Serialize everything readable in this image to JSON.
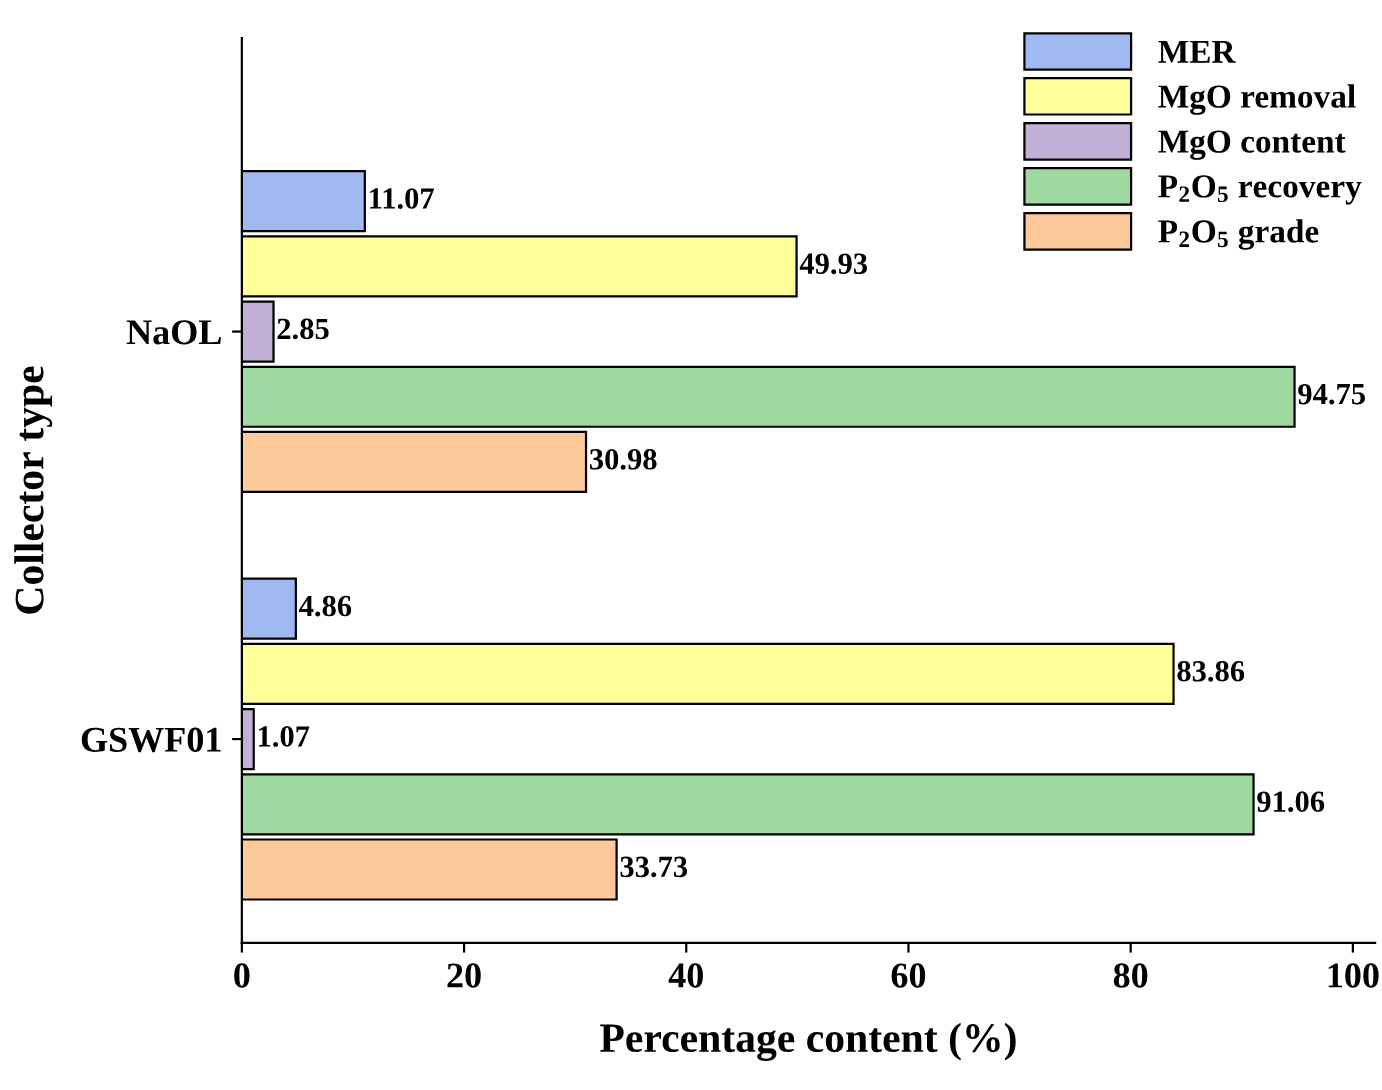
{
  "chart_data": {
    "type": "bar",
    "orientation": "horizontal",
    "xlabel": "Percentage content (%)",
    "ylabel": "Collector type",
    "categories": [
      "NaOL",
      "GSWF01"
    ],
    "series": [
      {
        "name": "MER",
        "color": "#a0b9f0",
        "values": [
          11.07,
          4.86
        ]
      },
      {
        "name": "MgO removal",
        "color": "#ffff99",
        "values": [
          49.93,
          83.86
        ]
      },
      {
        "name": "MgO content",
        "color": "#c2b0d6",
        "values": [
          2.85,
          1.07
        ]
      },
      {
        "name": "P$_{2}$O$_{5}$ recovery",
        "color": "#a0d9a0",
        "values": [
          94.75,
          91.06
        ]
      },
      {
        "name": "P$_{2}$O$_{5}$ grade",
        "color": "#fcc99a",
        "values": [
          30.98,
          33.73
        ]
      }
    ],
    "xlim": [
      0,
      102
    ],
    "xticks": [
      0,
      20,
      40,
      60,
      80,
      100
    ],
    "data_labels": true,
    "legend": "top right",
    "grid": false
  }
}
